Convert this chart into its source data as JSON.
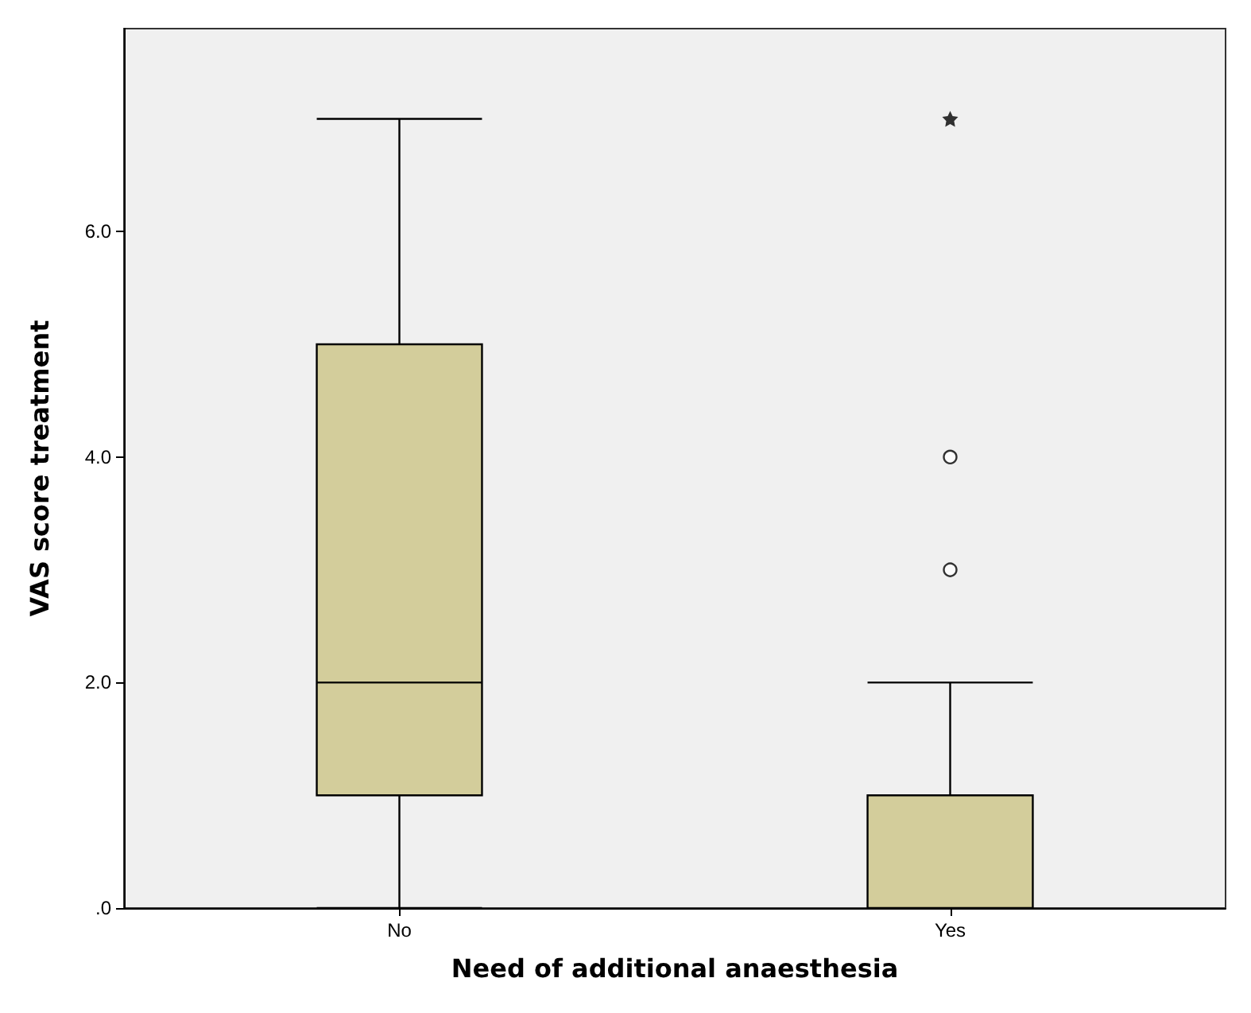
{
  "chart_data": {
    "type": "box",
    "xlabel": "Need of additional anaesthesia",
    "ylabel": "VAS score treatment",
    "categories": [
      "No",
      "Yes"
    ],
    "color": "#d3cd9b",
    "boxes": [
      {
        "low": 0,
        "q1": 1,
        "median": 2,
        "q3": 5,
        "high": 7
      },
      {
        "low": 0,
        "q1": 0,
        "median": 0,
        "q3": 1,
        "high": 2,
        "outliers": [
          3,
          4,
          7
        ]
      }
    ],
    "ylim": [
      0,
      7.8
    ],
    "yticks": [
      {
        "value": 0,
        "label": ".0"
      },
      {
        "value": 2,
        "label": "2.0"
      },
      {
        "value": 4,
        "label": "4.0"
      },
      {
        "value": 6,
        "label": "6.0"
      }
    ],
    "grid": false
  }
}
